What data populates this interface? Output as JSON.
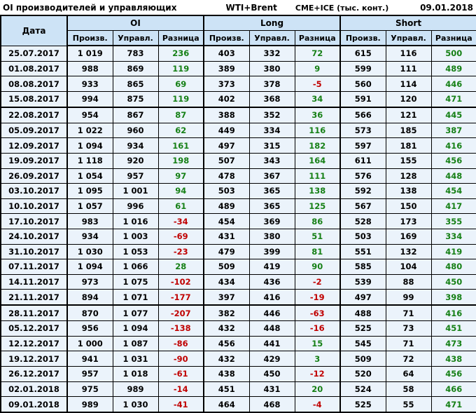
{
  "header": {
    "title": "OI производителей и управляющих",
    "instrument": "WTI+Brent",
    "exchange": "CME+ICE (тыс. конт.)",
    "report_date": "09.01.2018"
  },
  "table": {
    "date_col": "Дата",
    "groups": [
      "OI",
      "Long",
      "Short"
    ],
    "subheaders": [
      "Произв.",
      "Управл.",
      "Разница"
    ],
    "diff_col_indices": [
      3,
      6,
      9
    ],
    "group_start_indices": [
      1,
      4,
      7
    ],
    "thick_top_dates": [
      "22.08.2017",
      "28.11.2017"
    ]
  },
  "colors": {
    "positive": "#168016",
    "negative": "#c00000",
    "header_bg": "#cde3f6",
    "cell_bg": "#ebf3fb"
  },
  "chart_data": {
    "type": "table",
    "title": "OI производителей и управляющих",
    "subtitle": "WTI+Brent, CME+ICE (тыс. конт.), 09.01.2018",
    "columns": [
      "Дата",
      "OI Произв.",
      "OI Управл.",
      "OI Разница",
      "Long Произв.",
      "Long Управл.",
      "Long Разница",
      "Short Произв.",
      "Short Управл.",
      "Short Разница"
    ],
    "rows": [
      [
        "25.07.2017",
        1019,
        783,
        236,
        403,
        332,
        72,
        615,
        116,
        500
      ],
      [
        "01.08.2017",
        988,
        869,
        119,
        389,
        380,
        9,
        599,
        111,
        489
      ],
      [
        "08.08.2017",
        933,
        865,
        69,
        373,
        378,
        -5,
        560,
        114,
        446
      ],
      [
        "15.08.2017",
        994,
        875,
        119,
        402,
        368,
        34,
        591,
        120,
        471
      ],
      [
        "22.08.2017",
        954,
        867,
        87,
        388,
        352,
        36,
        566,
        121,
        445
      ],
      [
        "05.09.2017",
        1022,
        960,
        62,
        449,
        334,
        116,
        573,
        185,
        387
      ],
      [
        "12.09.2017",
        1094,
        934,
        161,
        497,
        315,
        182,
        597,
        181,
        416
      ],
      [
        "19.09.2017",
        1118,
        920,
        198,
        507,
        343,
        164,
        611,
        155,
        456
      ],
      [
        "26.09.2017",
        1054,
        957,
        97,
        478,
        367,
        111,
        576,
        128,
        448
      ],
      [
        "03.10.2017",
        1095,
        1001,
        94,
        503,
        365,
        138,
        592,
        138,
        454
      ],
      [
        "10.10.2017",
        1057,
        996,
        61,
        489,
        365,
        125,
        567,
        150,
        417
      ],
      [
        "17.10.2017",
        983,
        1016,
        -34,
        454,
        369,
        86,
        528,
        173,
        355
      ],
      [
        "24.10.2017",
        934,
        1003,
        -69,
        431,
        380,
        51,
        503,
        169,
        334
      ],
      [
        "31.10.2017",
        1030,
        1053,
        -23,
        479,
        399,
        81,
        551,
        132,
        419
      ],
      [
        "07.11.2017",
        1094,
        1066,
        28,
        509,
        419,
        90,
        585,
        104,
        480
      ],
      [
        "14.11.2017",
        973,
        1075,
        -102,
        434,
        436,
        -2,
        539,
        88,
        450
      ],
      [
        "21.11.2017",
        894,
        1071,
        -177,
        397,
        416,
        -19,
        497,
        99,
        398
      ],
      [
        "28.11.2017",
        870,
        1077,
        -207,
        382,
        446,
        -63,
        488,
        71,
        416
      ],
      [
        "05.12.2017",
        956,
        1094,
        -138,
        432,
        448,
        -16,
        525,
        73,
        451
      ],
      [
        "12.12.2017",
        1000,
        1087,
        -86,
        456,
        441,
        15,
        545,
        71,
        473
      ],
      [
        "19.12.2017",
        941,
        1031,
        -90,
        432,
        429,
        3,
        509,
        72,
        438
      ],
      [
        "26.12.2017",
        957,
        1018,
        -61,
        438,
        450,
        -12,
        520,
        64,
        456
      ],
      [
        "02.01.2018",
        975,
        989,
        -14,
        451,
        431,
        20,
        524,
        58,
        466
      ],
      [
        "09.01.2018",
        989,
        1030,
        -41,
        464,
        468,
        -4,
        525,
        55,
        471
      ]
    ]
  }
}
